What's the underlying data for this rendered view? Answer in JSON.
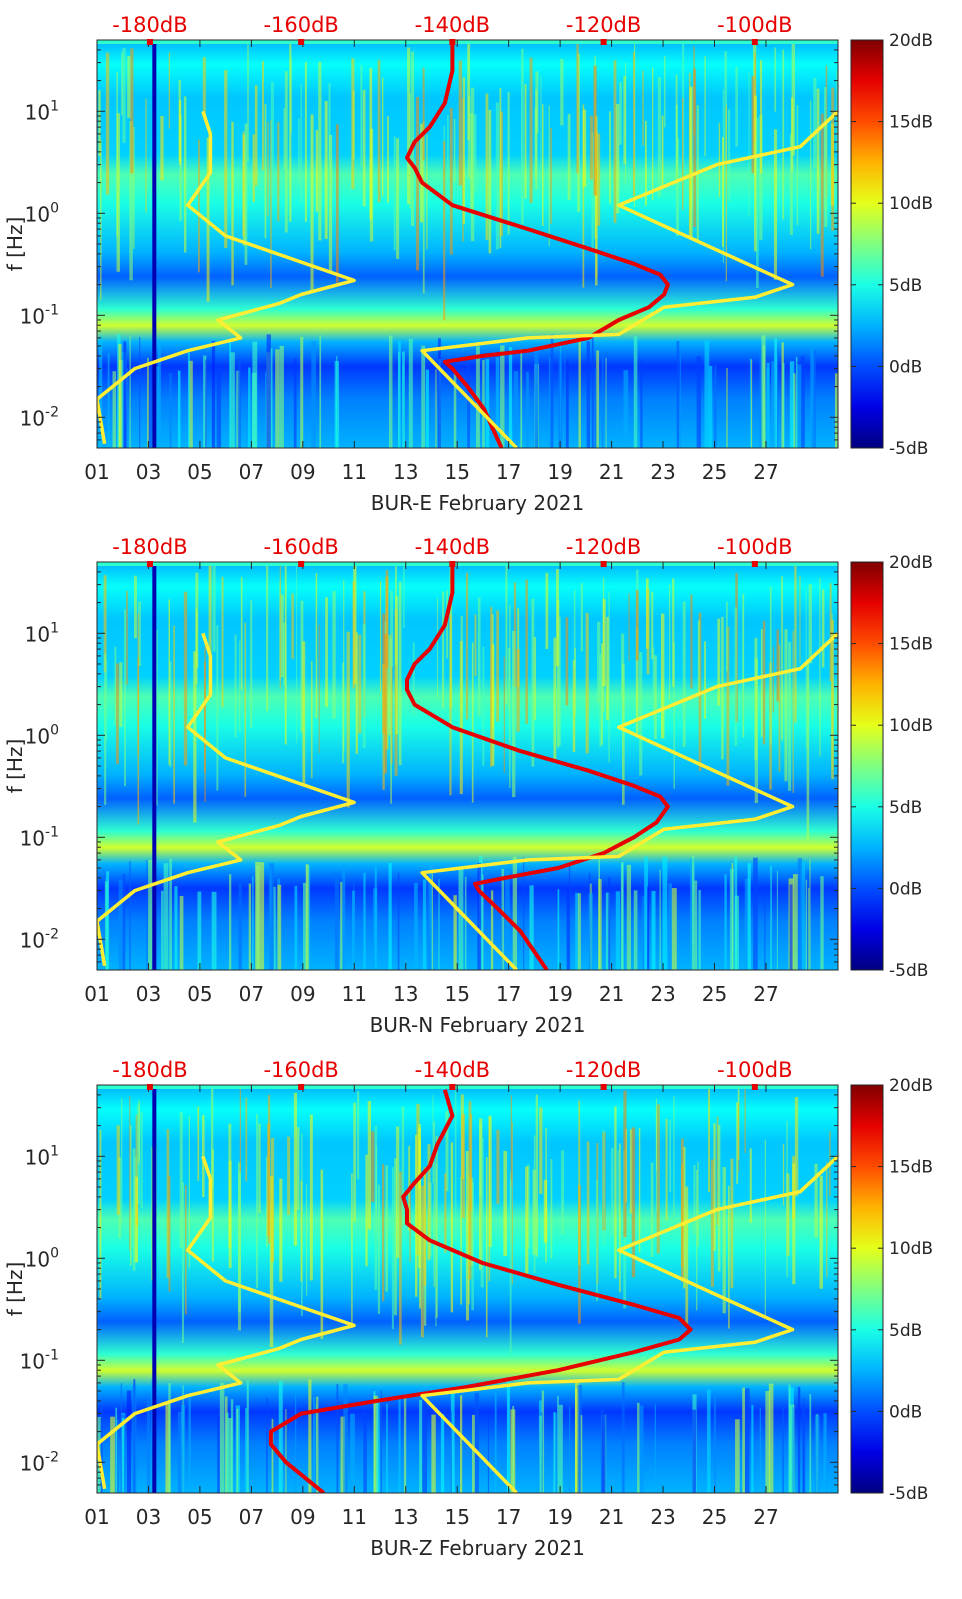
{
  "chart_data": [
    {
      "type": "heatmap",
      "xlabel": "BUR-E February 2021",
      "ylabel": "f [Hz]",
      "x_ticks": [
        "01",
        "03",
        "05",
        "07",
        "09",
        "11",
        "13",
        "15",
        "17",
        "19",
        "21",
        "23",
        "25",
        "27"
      ],
      "xlim_days": [
        1,
        29.8
      ],
      "y_scale": "log",
      "ylim": [
        0.005,
        50
      ],
      "y_tick_labels": [
        {
          "base": "10",
          "exp": "-2"
        },
        {
          "base": "10",
          "exp": "-1"
        },
        {
          "base": "10",
          "exp": "0"
        },
        {
          "base": "10",
          "exp": "1"
        }
      ],
      "top_axis_labels": [
        "-180dB",
        "-160dB",
        "-140dB",
        "-120dB",
        "-100dB"
      ],
      "top_axis_range_db": [
        -187,
        -89
      ],
      "colorbar": {
        "range": [
          -5,
          20
        ],
        "tick_labels": [
          "-5dB",
          "0dB",
          "5dB",
          "10dB",
          "15dB",
          "20dB"
        ],
        "colormap": "jet"
      },
      "colors": {
        "red_line": "#e60000",
        "yellow_line": "#ffee33"
      },
      "series": [
        {
          "color": "red",
          "points": [
            [
              -133.5,
              0.005
            ],
            [
              -135.8,
              0.012
            ],
            [
              -138,
              0.02
            ],
            [
              -140,
              0.03
            ],
            [
              -141,
              0.035
            ],
            [
              -136,
              0.04
            ],
            [
              -130,
              0.045
            ],
            [
              -122,
              0.06
            ],
            [
              -118,
              0.09
            ],
            [
              -114,
              0.12
            ],
            [
              -112,
              0.16
            ],
            [
              -111.5,
              0.2
            ],
            [
              -112.5,
              0.25
            ],
            [
              -116,
              0.32
            ],
            [
              -122,
              0.45
            ],
            [
              -130,
              0.7
            ],
            [
              -140,
              1.2
            ],
            [
              -144,
              2
            ],
            [
              -145,
              2.8
            ],
            [
              -146,
              3.5
            ],
            [
              -145,
              5
            ],
            [
              -143,
              7
            ],
            [
              -141,
              12
            ],
            [
              -140,
              25
            ],
            [
              -140,
              45
            ]
          ]
        },
        {
          "color": "yellow",
          "points": [
            [
              -186,
              0.0055
            ],
            [
              -187,
              0.015
            ],
            [
              -182,
              0.03
            ],
            [
              -175,
              0.045
            ],
            [
              -168,
              0.06
            ],
            [
              -171,
              0.09
            ],
            [
              -163,
              0.13
            ],
            [
              -160,
              0.16
            ],
            [
              -153,
              0.22
            ],
            [
              -170,
              0.6
            ],
            [
              -175,
              1.2
            ],
            [
              -172,
              2.5
            ],
            [
              -172,
              6
            ],
            [
              -173,
              10
            ]
          ]
        },
        {
          "color": "yellow",
          "points": [
            [
              -131.5,
              0.005
            ],
            [
              -144,
              0.045
            ],
            [
              -130,
              0.06
            ],
            [
              -118,
              0.065
            ],
            [
              -112,
              0.12
            ],
            [
              -100,
              0.15
            ],
            [
              -95,
              0.2
            ],
            [
              -118,
              1.2
            ],
            [
              -105,
              3
            ],
            [
              -94,
              4.5
            ],
            [
              -89,
              10
            ]
          ]
        }
      ]
    },
    {
      "type": "heatmap",
      "xlabel": "BUR-N February 2021",
      "ylabel": "f [Hz]",
      "x_ticks": [
        "01",
        "03",
        "05",
        "07",
        "09",
        "11",
        "13",
        "15",
        "17",
        "19",
        "21",
        "23",
        "25",
        "27"
      ],
      "xlim_days": [
        1,
        29.8
      ],
      "y_scale": "log",
      "ylim": [
        0.005,
        50
      ],
      "y_tick_labels": [
        {
          "base": "10",
          "exp": "-2"
        },
        {
          "base": "10",
          "exp": "-1"
        },
        {
          "base": "10",
          "exp": "0"
        },
        {
          "base": "10",
          "exp": "1"
        }
      ],
      "top_axis_labels": [
        "-180dB",
        "-160dB",
        "-140dB",
        "-120dB",
        "-100dB"
      ],
      "top_axis_range_db": [
        -187,
        -89
      ],
      "colorbar": {
        "range": [
          -5,
          20
        ],
        "tick_labels": [
          "-5dB",
          "0dB",
          "5dB",
          "10dB",
          "15dB",
          "20dB"
        ],
        "colormap": "jet"
      },
      "colors": {
        "red_line": "#e60000",
        "yellow_line": "#ffee33"
      },
      "series": [
        {
          "color": "red",
          "points": [
            [
              -127.5,
              0.005
            ],
            [
              -131,
              0.012
            ],
            [
              -134,
              0.02
            ],
            [
              -136.5,
              0.03
            ],
            [
              -137,
              0.035
            ],
            [
              -133,
              0.04
            ],
            [
              -126,
              0.05
            ],
            [
              -120,
              0.07
            ],
            [
              -116,
              0.1
            ],
            [
              -113,
              0.14
            ],
            [
              -111.5,
              0.2
            ],
            [
              -112.5,
              0.25
            ],
            [
              -116,
              0.32
            ],
            [
              -122,
              0.45
            ],
            [
              -131,
              0.7
            ],
            [
              -140,
              1.2
            ],
            [
              -145,
              2
            ],
            [
              -146,
              2.8
            ],
            [
              -146,
              3.5
            ],
            [
              -145,
              5
            ],
            [
              -143,
              7
            ],
            [
              -141,
              12
            ],
            [
              -140,
              25
            ],
            [
              -140,
              45
            ]
          ]
        },
        {
          "color": "yellow",
          "points": [
            [
              -186,
              0.0055
            ],
            [
              -187,
              0.015
            ],
            [
              -182,
              0.03
            ],
            [
              -175,
              0.045
            ],
            [
              -168,
              0.06
            ],
            [
              -171,
              0.09
            ],
            [
              -163,
              0.13
            ],
            [
              -160,
              0.16
            ],
            [
              -153,
              0.22
            ],
            [
              -170,
              0.6
            ],
            [
              -175,
              1.2
            ],
            [
              -172,
              2.5
            ],
            [
              -172,
              6
            ],
            [
              -173,
              10
            ]
          ]
        },
        {
          "color": "yellow",
          "points": [
            [
              -131.5,
              0.005
            ],
            [
              -144,
              0.045
            ],
            [
              -130,
              0.06
            ],
            [
              -118,
              0.065
            ],
            [
              -112,
              0.12
            ],
            [
              -100,
              0.15
            ],
            [
              -95,
              0.2
            ],
            [
              -118,
              1.2
            ],
            [
              -105,
              3
            ],
            [
              -94,
              4.5
            ],
            [
              -89,
              10
            ]
          ]
        }
      ]
    },
    {
      "type": "heatmap",
      "xlabel": "BUR-Z February 2021",
      "ylabel": "f [Hz]",
      "x_ticks": [
        "01",
        "03",
        "05",
        "07",
        "09",
        "11",
        "13",
        "15",
        "17",
        "19",
        "21",
        "23",
        "25",
        "27"
      ],
      "xlim_days": [
        1,
        29.8
      ],
      "y_scale": "log",
      "ylim": [
        0.005,
        50
      ],
      "y_tick_labels": [
        {
          "base": "10",
          "exp": "-2"
        },
        {
          "base": "10",
          "exp": "-1"
        },
        {
          "base": "10",
          "exp": "0"
        },
        {
          "base": "10",
          "exp": "1"
        }
      ],
      "top_axis_labels": [
        "-180dB",
        "-160dB",
        "-140dB",
        "-120dB",
        "-100dB"
      ],
      "top_axis_range_db": [
        -187,
        -89
      ],
      "colorbar": {
        "range": [
          -5,
          20
        ],
        "tick_labels": [
          "-5dB",
          "0dB",
          "5dB",
          "10dB",
          "15dB",
          "20dB"
        ],
        "colormap": "jet"
      },
      "colors": {
        "red_line": "#e60000",
        "yellow_line": "#ffee33"
      },
      "series": [
        {
          "color": "red",
          "points": [
            [
              -157,
              0.005
            ],
            [
              -162,
              0.01
            ],
            [
              -164,
              0.015
            ],
            [
              -164,
              0.02
            ],
            [
              -160,
              0.03
            ],
            [
              -150,
              0.04
            ],
            [
              -138,
              0.055
            ],
            [
              -126,
              0.08
            ],
            [
              -116,
              0.12
            ],
            [
              -110,
              0.16
            ],
            [
              -108.5,
              0.2
            ],
            [
              -110,
              0.26
            ],
            [
              -116,
              0.35
            ],
            [
              -126,
              0.55
            ],
            [
              -136,
              0.9
            ],
            [
              -143,
              1.5
            ],
            [
              -146,
              2.2
            ],
            [
              -146,
              3
            ],
            [
              -146.5,
              4
            ],
            [
              -145,
              5.5
            ],
            [
              -143,
              8
            ],
            [
              -142,
              13
            ],
            [
              -140,
              25
            ],
            [
              -141,
              45
            ]
          ]
        },
        {
          "color": "yellow",
          "points": [
            [
              -186,
              0.0055
            ],
            [
              -187,
              0.015
            ],
            [
              -182,
              0.03
            ],
            [
              -175,
              0.045
            ],
            [
              -168,
              0.06
            ],
            [
              -171,
              0.09
            ],
            [
              -163,
              0.13
            ],
            [
              -160,
              0.16
            ],
            [
              -153,
              0.22
            ],
            [
              -170,
              0.6
            ],
            [
              -175,
              1.2
            ],
            [
              -172,
              2.5
            ],
            [
              -172,
              6
            ],
            [
              -173,
              10
            ]
          ]
        },
        {
          "color": "yellow",
          "points": [
            [
              -131.5,
              0.005
            ],
            [
              -144,
              0.045
            ],
            [
              -130,
              0.06
            ],
            [
              -118,
              0.065
            ],
            [
              -112,
              0.12
            ],
            [
              -100,
              0.15
            ],
            [
              -95,
              0.2
            ],
            [
              -118,
              1.2
            ],
            [
              -105,
              3
            ],
            [
              -94,
              4.5
            ],
            [
              -89,
              10
            ]
          ]
        }
      ]
    }
  ]
}
